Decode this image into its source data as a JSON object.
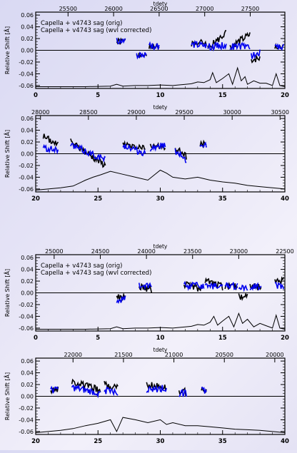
{
  "chart_data": [
    {
      "type": "line",
      "ylabel": "Relative Shift [Å]",
      "top_axis_label": "tdety",
      "top_ticks": [
        "25500",
        "26000",
        "26500",
        "27000",
        "27500"
      ],
      "top_tick_pos": [
        25500,
        26000,
        26500,
        27000,
        27500
      ],
      "x_ticks": [
        "0",
        "5",
        "10",
        "15",
        "20"
      ],
      "xlim": [
        0,
        20
      ],
      "ylim": [
        -0.065,
        0.065
      ],
      "y_ticks": [
        "0.06",
        "0.04",
        "0.02",
        "0.00",
        "-0.02",
        "-0.04",
        "-0.06"
      ],
      "legend": {
        "orig": "Capella + v4743 sag (orig)",
        "corr": "Capella + v4743 sag (wvl corrected)"
      },
      "series": [
        {
          "role": "orig",
          "color": "#000000",
          "segments": [
            {
              "x": [
                6.5,
                7.2
              ],
              "y": [
                0.014,
                0.015
              ]
            },
            {
              "x": [
                8.1,
                8.9
              ],
              "y": [
                -0.006,
                -0.01
              ]
            },
            {
              "x": [
                9.1,
                9.9
              ],
              "y": [
                0.006,
                0.004
              ]
            },
            {
              "x": [
                12.5,
                13.7
              ],
              "y": [
                0.012,
                0.013
              ]
            },
            {
              "x": [
                13.8,
                15.3
              ],
              "y": [
                0.003,
                0.03
              ]
            },
            {
              "x": [
                15.6,
                17.2
              ],
              "y": [
                0.006,
                0.027
              ]
            },
            {
              "x": [
                17.3,
                18.0
              ],
              "y": [
                -0.016,
                -0.014
              ]
            },
            {
              "x": [
                19.2,
                19.9
              ],
              "y": [
                0.004,
                0.004
              ]
            }
          ]
        },
        {
          "role": "corr",
          "color": "#0000ee",
          "segments": [
            {
              "x": [
                6.5,
                7.2
              ],
              "y": [
                0.016,
                0.016
              ]
            },
            {
              "x": [
                8.1,
                8.9
              ],
              "y": [
                -0.008,
                -0.008
              ]
            },
            {
              "x": [
                9.1,
                9.9
              ],
              "y": [
                0.008,
                0.006
              ]
            },
            {
              "x": [
                12.5,
                13.7
              ],
              "y": [
                0.01,
                0.008
              ]
            },
            {
              "x": [
                13.8,
                15.3
              ],
              "y": [
                0.006,
                0.009
              ]
            },
            {
              "x": [
                15.6,
                17.2
              ],
              "y": [
                0.006,
                0.007
              ]
            },
            {
              "x": [
                17.3,
                18.0
              ],
              "y": [
                -0.01,
                -0.004
              ]
            },
            {
              "x": [
                19.2,
                19.9
              ],
              "y": [
                0.005,
                0.005
              ]
            }
          ]
        },
        {
          "role": "bottom",
          "color": "#000000",
          "x": [
            0,
            2,
            4,
            6,
            6.5,
            7,
            8,
            9,
            10,
            11,
            12,
            12.5,
            13,
            13.5,
            14,
            14.2,
            14.5,
            15,
            15.5,
            15.8,
            16.2,
            16.5,
            16.8,
            17,
            17.5,
            18,
            18.5,
            19,
            19.3,
            19.6,
            20
          ],
          "y": [
            -0.062,
            -0.062,
            -0.062,
            -0.061,
            -0.058,
            -0.061,
            -0.06,
            -0.06,
            -0.059,
            -0.06,
            -0.058,
            -0.057,
            -0.054,
            -0.055,
            -0.05,
            -0.038,
            -0.055,
            -0.048,
            -0.04,
            -0.058,
            -0.03,
            -0.052,
            -0.045,
            -0.058,
            -0.052,
            -0.056,
            -0.056,
            -0.06,
            -0.04,
            -0.06,
            -0.062
          ]
        }
      ]
    },
    {
      "type": "line",
      "ylabel": "Relative Shift [Å]",
      "top_axis_label": "tdety",
      "top_ticks": [
        "28000",
        "28500",
        "29000",
        "29500",
        "30000",
        "30500"
      ],
      "top_tick_pos": [
        28000,
        28500,
        29000,
        29500,
        30000,
        30500
      ],
      "x_ticks": [
        "20",
        "25",
        "30",
        "35",
        "40"
      ],
      "xlim": [
        20,
        40
      ],
      "ylim": [
        -0.065,
        0.065
      ],
      "y_ticks": [
        "0.06",
        "0.04",
        "0.02",
        "0.00",
        "-0.02",
        "-0.04",
        "-0.06"
      ],
      "series": [
        {
          "role": "orig",
          "color": "#000000",
          "segments": [
            {
              "x": [
                20.6,
                21.8
              ],
              "y": [
                0.03,
                0.015
              ]
            },
            {
              "x": [
                22.8,
                25.6
              ],
              "y": [
                0.02,
                -0.02
              ]
            },
            {
              "x": [
                27.0,
                28.8
              ],
              "y": [
                0.015,
                0.01
              ]
            },
            {
              "x": [
                29.2,
                30.4
              ],
              "y": [
                0.015,
                0.01
              ]
            },
            {
              "x": [
                31.2,
                32.1
              ],
              "y": [
                0.01,
                -0.005
              ]
            },
            {
              "x": [
                33.2,
                33.7
              ],
              "y": [
                0.015,
                0.02
              ]
            }
          ]
        },
        {
          "role": "corr",
          "color": "#0000ee",
          "segments": [
            {
              "x": [
                20.6,
                21.8
              ],
              "y": [
                0.01,
                0.005
              ]
            },
            {
              "x": [
                22.8,
                25.6
              ],
              "y": [
                0.015,
                -0.01
              ]
            },
            {
              "x": [
                27.0,
                28.8
              ],
              "y": [
                0.015,
                0.0
              ]
            },
            {
              "x": [
                29.2,
                30.4
              ],
              "y": [
                0.01,
                0.015
              ]
            },
            {
              "x": [
                31.2,
                32.1
              ],
              "y": [
                0.005,
                -0.01
              ]
            },
            {
              "x": [
                33.2,
                33.7
              ],
              "y": [
                0.01,
                0.015
              ]
            }
          ]
        },
        {
          "role": "bottom",
          "color": "#000000",
          "x": [
            20,
            21,
            22,
            23,
            23.5,
            24,
            24.6,
            25.2,
            26,
            27,
            28,
            29,
            30,
            30.5,
            31,
            32,
            33,
            34,
            35,
            36,
            37,
            38,
            39,
            40
          ],
          "y": [
            -0.062,
            -0.06,
            -0.058,
            -0.055,
            -0.05,
            -0.045,
            -0.04,
            -0.036,
            -0.03,
            -0.035,
            -0.04,
            -0.045,
            -0.028,
            -0.033,
            -0.04,
            -0.043,
            -0.04,
            -0.045,
            -0.048,
            -0.05,
            -0.054,
            -0.056,
            -0.058,
            -0.06
          ]
        }
      ]
    },
    {
      "type": "line",
      "ylabel": "Relative Shift [Å]",
      "top_axis_label": "tdety",
      "top_ticks": [
        "25000",
        "24500",
        "24000",
        "23500",
        "23000",
        "22500"
      ],
      "top_tick_pos": [
        25000,
        24500,
        24000,
        23500,
        23000,
        22500
      ],
      "x_ticks": [
        "0",
        "5",
        "10",
        "15",
        "20"
      ],
      "xlim": [
        0,
        20
      ],
      "ylim": [
        -0.065,
        0.065
      ],
      "y_ticks": [
        "0.06",
        "0.04",
        "0.02",
        "0.00",
        "-0.02",
        "-0.04",
        "-0.06"
      ],
      "legend": {
        "orig": "Capella + v4743 sag (orig)",
        "corr": "Capella + v4743 sag (wvl corrected)"
      },
      "series": [
        {
          "role": "orig",
          "color": "#000000",
          "segments": [
            {
              "x": [
                6.5,
                7.2
              ],
              "y": [
                -0.008,
                -0.008
              ]
            },
            {
              "x": [
                8.3,
                9.3
              ],
              "y": [
                0.01,
                0.005
              ]
            },
            {
              "x": [
                11.9,
                13.5
              ],
              "y": [
                0.015,
                0.005
              ]
            },
            {
              "x": [
                13.6,
                15.0
              ],
              "y": [
                0.02,
                0.01
              ]
            },
            {
              "x": [
                15.2,
                16.2
              ],
              "y": [
                0.012,
                0.01
              ]
            },
            {
              "x": [
                16.3,
                17.0
              ],
              "y": [
                -0.006,
                -0.006
              ]
            },
            {
              "x": [
                17.2,
                18.1
              ],
              "y": [
                0.012,
                0.01
              ]
            },
            {
              "x": [
                19.2,
                19.9
              ],
              "y": [
                0.022,
                0.022
              ]
            }
          ]
        },
        {
          "role": "corr",
          "color": "#0000ee",
          "segments": [
            {
              "x": [
                6.5,
                7.2
              ],
              "y": [
                -0.012,
                -0.01
              ]
            },
            {
              "x": [
                8.3,
                9.3
              ],
              "y": [
                0.012,
                0.01
              ]
            },
            {
              "x": [
                11.9,
                13.5
              ],
              "y": [
                0.012,
                0.012
              ]
            },
            {
              "x": [
                13.6,
                15.0
              ],
              "y": [
                0.012,
                0.01
              ]
            },
            {
              "x": [
                15.2,
                16.2
              ],
              "y": [
                0.012,
                0.012
              ]
            },
            {
              "x": [
                16.3,
                17.0
              ],
              "y": [
                0.01,
                0.01
              ]
            },
            {
              "x": [
                17.2,
                18.1
              ],
              "y": [
                0.01,
                0.012
              ]
            },
            {
              "x": [
                19.2,
                19.9
              ],
              "y": [
                0.012,
                0.012
              ]
            }
          ]
        },
        {
          "role": "bottom",
          "color": "#000000",
          "x": [
            0,
            2,
            4,
            6,
            6.5,
            7,
            8,
            9,
            10,
            11,
            12,
            12.5,
            13,
            13.5,
            14,
            14.3,
            14.6,
            15,
            15.5,
            15.9,
            16.3,
            16.6,
            17,
            17.5,
            18,
            18.5,
            19,
            19.3,
            19.6,
            20
          ],
          "y": [
            -0.062,
            -0.062,
            -0.062,
            -0.061,
            -0.058,
            -0.061,
            -0.06,
            -0.06,
            -0.059,
            -0.06,
            -0.058,
            -0.057,
            -0.054,
            -0.055,
            -0.05,
            -0.04,
            -0.055,
            -0.048,
            -0.04,
            -0.058,
            -0.035,
            -0.052,
            -0.045,
            -0.058,
            -0.052,
            -0.056,
            -0.06,
            -0.038,
            -0.06,
            -0.062
          ]
        }
      ]
    },
    {
      "type": "line",
      "ylabel": "Relative Shift [Å]",
      "top_axis_label": "tdety",
      "top_ticks": [
        "22000",
        "21500",
        "21000",
        "20500",
        "20000"
      ],
      "top_tick_pos": [
        22000,
        21500,
        21000,
        20500,
        20000
      ],
      "x_ticks": [
        "20",
        "25",
        "30",
        "35",
        "40"
      ],
      "xlim": [
        20,
        40
      ],
      "ylim": [
        -0.065,
        0.065
      ],
      "y_ticks": [
        "0.06",
        "0.04",
        "0.02",
        "0.00",
        "-0.02",
        "-0.04",
        "-0.06"
      ],
      "series": [
        {
          "role": "orig",
          "color": "#000000",
          "segments": [
            {
              "x": [
                21.2,
                21.8
              ],
              "y": [
                0.012,
                0.012
              ]
            },
            {
              "x": [
                22.9,
                25.2
              ],
              "y": [
                0.025,
                0.01
              ]
            },
            {
              "x": [
                25.5,
                26.6
              ],
              "y": [
                0.02,
                0.015
              ]
            },
            {
              "x": [
                28.9,
                30.5
              ],
              "y": [
                0.02,
                0.015
              ]
            },
            {
              "x": [
                31.5,
                32.1
              ],
              "y": [
                0.008,
                0.008
              ]
            },
            {
              "x": [
                33.3,
                33.7
              ],
              "y": [
                0.01,
                0.01
              ]
            }
          ]
        },
        {
          "role": "corr",
          "color": "#0000ee",
          "segments": [
            {
              "x": [
                21.2,
                21.8
              ],
              "y": [
                0.01,
                0.01
              ]
            },
            {
              "x": [
                22.9,
                25.2
              ],
              "y": [
                0.015,
                0.005
              ]
            },
            {
              "x": [
                25.5,
                26.6
              ],
              "y": [
                0.01,
                0.005
              ]
            },
            {
              "x": [
                28.9,
                30.5
              ],
              "y": [
                0.01,
                0.015
              ]
            },
            {
              "x": [
                31.5,
                32.1
              ],
              "y": [
                0.005,
                0.005
              ]
            },
            {
              "x": [
                33.3,
                33.7
              ],
              "y": [
                0.01,
                0.01
              ]
            }
          ]
        },
        {
          "role": "bottom",
          "color": "#000000",
          "x": [
            20,
            21,
            22,
            23,
            24,
            25,
            26,
            26.5,
            27,
            28,
            29,
            30,
            30.5,
            31,
            32,
            33,
            34,
            35,
            36,
            37,
            38,
            39,
            40
          ],
          "y": [
            -0.062,
            -0.06,
            -0.058,
            -0.055,
            -0.05,
            -0.046,
            -0.04,
            -0.06,
            -0.036,
            -0.04,
            -0.045,
            -0.04,
            -0.048,
            -0.045,
            -0.05,
            -0.05,
            -0.052,
            -0.054,
            -0.056,
            -0.057,
            -0.058,
            -0.06,
            -0.062
          ]
        }
      ]
    }
  ]
}
